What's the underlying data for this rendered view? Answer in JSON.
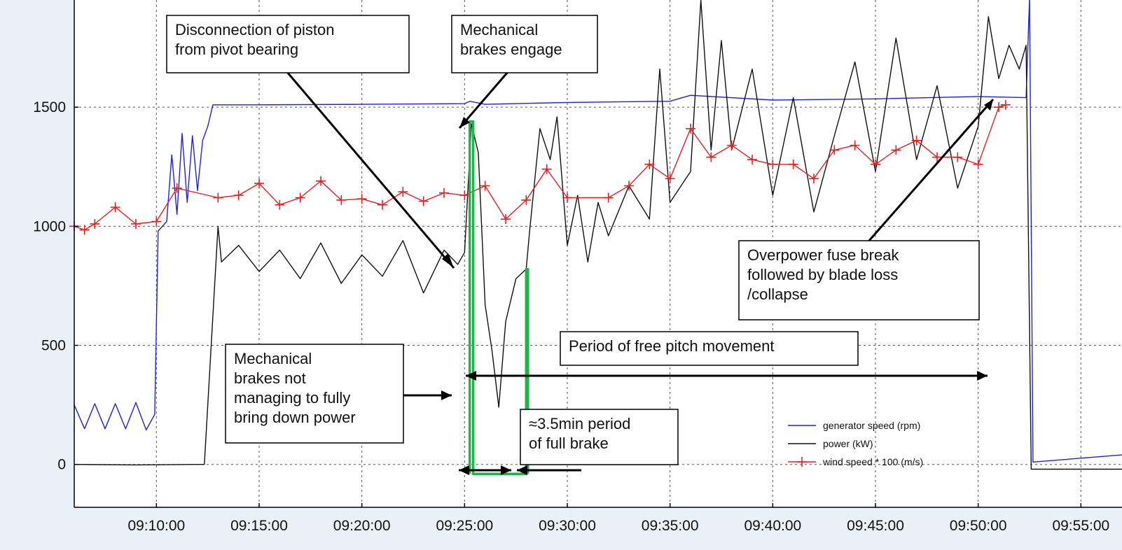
{
  "chart_data": {
    "type": "line",
    "title": "",
    "xlabel": "",
    "ylabel": "",
    "x_ticks": [
      "09:10:00",
      "09:15:00",
      "09:20:00",
      "09:25:00",
      "09:30:00",
      "09:35:00",
      "09:40:00",
      "09:45:00",
      "09:50:00",
      "09:55:00"
    ],
    "y_ticks": [
      0,
      500,
      1000,
      1500
    ],
    "xlim": [
      "09:06:00",
      "09:57:00"
    ],
    "ylim": [
      -180,
      1950
    ],
    "grid": true,
    "legend_position": "bottom-right",
    "series": [
      {
        "name": "generator speed (rpm)",
        "color": "#1f1fe0",
        "points": [
          [
            "09:06:00",
            250
          ],
          [
            "09:06:30",
            150
          ],
          [
            "09:07:00",
            255
          ],
          [
            "09:07:30",
            150
          ],
          [
            "09:08:00",
            255
          ],
          [
            "09:08:30",
            150
          ],
          [
            "09:09:00",
            260
          ],
          [
            "09:09:30",
            145
          ],
          [
            "09:09:55",
            210
          ],
          [
            "09:10:05",
            980
          ],
          [
            "09:10:30",
            1020
          ],
          [
            "09:10:45",
            1300
          ],
          [
            "09:11:00",
            1050
          ],
          [
            "09:11:15",
            1390
          ],
          [
            "09:11:30",
            1100
          ],
          [
            "09:11:45",
            1380
          ],
          [
            "09:12:00",
            1150
          ],
          [
            "09:12:15",
            1360
          ],
          [
            "09:12:30",
            1420
          ],
          [
            "09:12:45",
            1510
          ],
          [
            "09:15:00",
            1510
          ],
          [
            "09:20:00",
            1512
          ],
          [
            "09:25:00",
            1515
          ],
          [
            "09:25:15",
            1525
          ],
          [
            "09:26:00",
            1512
          ],
          [
            "09:30:00",
            1520
          ],
          [
            "09:35:00",
            1525
          ],
          [
            "09:36:00",
            1550
          ],
          [
            "09:40:00",
            1530
          ],
          [
            "09:45:00",
            1535
          ],
          [
            "09:50:00",
            1545
          ],
          [
            "09:52:20",
            1540
          ],
          [
            "09:52:30",
            1960
          ],
          [
            "09:52:40",
            10
          ],
          [
            "09:57:00",
            40
          ]
        ]
      },
      {
        "name": "power (kW)",
        "color": "#111111",
        "points": [
          [
            "09:06:00",
            0
          ],
          [
            "09:09:00",
            -2
          ],
          [
            "09:12:00",
            0
          ],
          [
            "09:12:20",
            0
          ],
          [
            "09:13:00",
            1000
          ],
          [
            "09:13:10",
            850
          ],
          [
            "09:14:00",
            920
          ],
          [
            "09:15:00",
            810
          ],
          [
            "09:16:00",
            900
          ],
          [
            "09:17:00",
            780
          ],
          [
            "09:18:00",
            930
          ],
          [
            "09:19:00",
            760
          ],
          [
            "09:20:00",
            880
          ],
          [
            "09:21:00",
            790
          ],
          [
            "09:22:00",
            940
          ],
          [
            "09:23:00",
            720
          ],
          [
            "09:24:00",
            900
          ],
          [
            "09:24:40",
            840
          ],
          [
            "09:25:00",
            890
          ],
          [
            "09:25:20",
            1430
          ],
          [
            "09:25:40",
            1310
          ],
          [
            "09:26:00",
            670
          ],
          [
            "09:26:20",
            480
          ],
          [
            "09:26:40",
            240
          ],
          [
            "09:27:00",
            600
          ],
          [
            "09:27:30",
            780
          ],
          [
            "09:28:00",
            820
          ],
          [
            "09:28:10",
            980
          ],
          [
            "09:28:40",
            1410
          ],
          [
            "09:29:10",
            1280
          ],
          [
            "09:29:30",
            1460
          ],
          [
            "09:30:00",
            920
          ],
          [
            "09:30:30",
            1130
          ],
          [
            "09:31:00",
            850
          ],
          [
            "09:31:30",
            1100
          ],
          [
            "09:32:00",
            960
          ],
          [
            "09:33:00",
            1170
          ],
          [
            "09:34:00",
            1030
          ],
          [
            "09:34:30",
            1660
          ],
          [
            "09:35:00",
            1100
          ],
          [
            "09:36:00",
            1230
          ],
          [
            "09:36:30",
            1950
          ],
          [
            "09:37:00",
            1320
          ],
          [
            "09:37:30",
            1780
          ],
          [
            "09:38:00",
            1320
          ],
          [
            "09:39:00",
            1660
          ],
          [
            "09:40:00",
            1130
          ],
          [
            "09:41:00",
            1540
          ],
          [
            "09:42:00",
            1060
          ],
          [
            "09:43:00",
            1380
          ],
          [
            "09:44:00",
            1690
          ],
          [
            "09:45:00",
            1230
          ],
          [
            "09:46:00",
            1790
          ],
          [
            "09:47:00",
            1280
          ],
          [
            "09:48:00",
            1590
          ],
          [
            "09:49:00",
            1160
          ],
          [
            "09:50:00",
            1420
          ],
          [
            "09:50:30",
            1880
          ],
          [
            "09:51:00",
            1620
          ],
          [
            "09:51:30",
            1760
          ],
          [
            "09:52:00",
            1660
          ],
          [
            "09:52:20",
            1760
          ],
          [
            "09:52:35",
            -20
          ],
          [
            "09:57:00",
            -20
          ]
        ]
      },
      {
        "name": "wind speed * 100 (m/s)",
        "color": "#e51f1f",
        "points": [
          [
            "09:06:00",
            1000
          ],
          [
            "09:06:30",
            985
          ],
          [
            "09:07:00",
            1010
          ],
          [
            "09:08:00",
            1080
          ],
          [
            "09:09:00",
            1010
          ],
          [
            "09:10:00",
            1020
          ],
          [
            "09:11:00",
            1160
          ],
          [
            "09:13:00",
            1120
          ],
          [
            "09:14:00",
            1130
          ],
          [
            "09:15:00",
            1180
          ],
          [
            "09:16:00",
            1090
          ],
          [
            "09:17:00",
            1120
          ],
          [
            "09:18:00",
            1190
          ],
          [
            "09:19:00",
            1110
          ],
          [
            "09:20:00",
            1115
          ],
          [
            "09:21:00",
            1090
          ],
          [
            "09:22:00",
            1145
          ],
          [
            "09:23:00",
            1105
          ],
          [
            "09:24:00",
            1140
          ],
          [
            "09:25:00",
            1130
          ],
          [
            "09:26:00",
            1170
          ],
          [
            "09:27:00",
            1030
          ],
          [
            "09:28:00",
            1110
          ],
          [
            "09:29:00",
            1240
          ],
          [
            "09:30:00",
            1120
          ],
          [
            "09:32:00",
            1120
          ],
          [
            "09:33:00",
            1170
          ],
          [
            "09:34:00",
            1260
          ],
          [
            "09:35:00",
            1200
          ],
          [
            "09:36:00",
            1410
          ],
          [
            "09:37:00",
            1290
          ],
          [
            "09:38:00",
            1340
          ],
          [
            "09:39:00",
            1280
          ],
          [
            "09:40:00",
            1260
          ],
          [
            "09:41:00",
            1260
          ],
          [
            "09:42:00",
            1200
          ],
          [
            "09:43:00",
            1320
          ],
          [
            "09:44:00",
            1340
          ],
          [
            "09:45:00",
            1260
          ],
          [
            "09:46:00",
            1320
          ],
          [
            "09:47:00",
            1360
          ],
          [
            "09:48:00",
            1290
          ],
          [
            "09:49:00",
            1290
          ],
          [
            "09:50:00",
            1260
          ],
          [
            "09:51:00",
            1500
          ],
          [
            "09:51:20",
            1510
          ]
        ]
      },
      {
        "name": "",
        "color": "#22b24c",
        "points": [
          [
            "09:25:15",
            -40
          ],
          [
            "09:25:15",
            1440
          ],
          [
            "09:25:25",
            1440
          ],
          [
            "09:25:25",
            -40
          ],
          [
            "09:28:00",
            -40
          ],
          [
            "09:28:00",
            820
          ],
          [
            "09:28:05",
            820
          ],
          [
            "09:28:05",
            -40
          ]
        ]
      }
    ],
    "annotations": [
      {
        "lines": [
          "Disconnection of piston",
          "from pivot bearing"
        ]
      },
      {
        "lines": [
          "Mechanical",
          "brakes engage"
        ]
      },
      {
        "lines": [
          "Overpower fuse break",
          "followed by blade loss",
          "/collapse"
        ]
      },
      {
        "lines": [
          "Mechanical",
          "brakes not",
          "managing to fully",
          "bring down power"
        ]
      },
      {
        "lines": [
          "Period of free pitch movement"
        ]
      },
      {
        "lines": [
          "≈3.5min period",
          "of full brake"
        ]
      }
    ]
  }
}
